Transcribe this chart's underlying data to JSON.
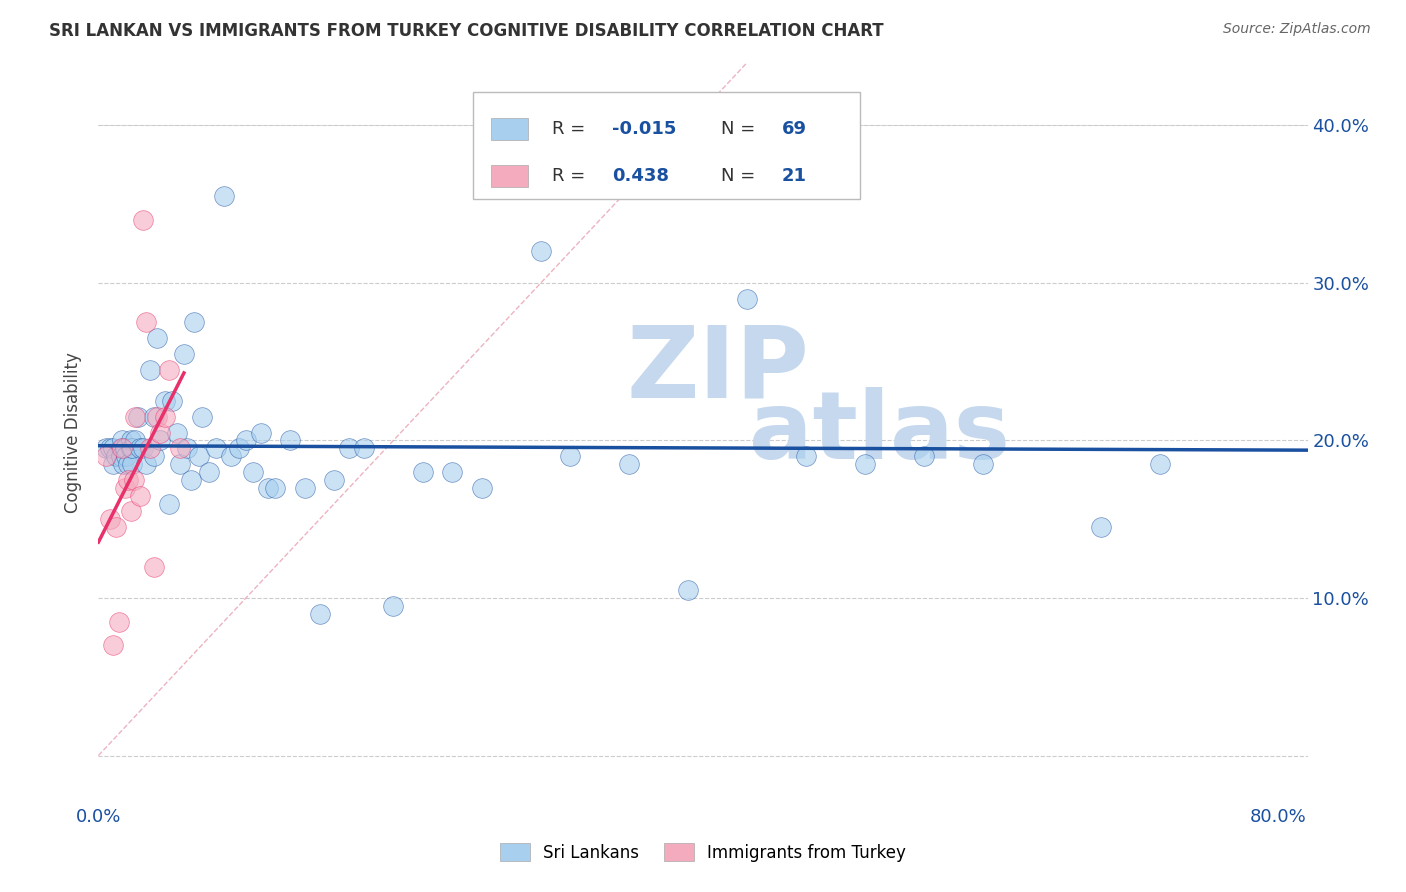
{
  "title": "SRI LANKAN VS IMMIGRANTS FROM TURKEY COGNITIVE DISABILITY CORRELATION CHART",
  "source": "Source: ZipAtlas.com",
  "ylabel": "Cognitive Disability",
  "xlim": [
    0.0,
    0.82
  ],
  "ylim": [
    -0.03,
    0.44
  ],
  "blue_color": "#A8CFEE",
  "pink_color": "#F4ABBE",
  "blue_line_color": "#1A50A0",
  "pink_line_color": "#E8306A",
  "diagonal_color": "#E8A0B0",
  "watermark_zip_color": "#C5D8ED",
  "watermark_atlas_color": "#C5D8ED",
  "sri_lankans_x": [
    0.005,
    0.008,
    0.01,
    0.01,
    0.012,
    0.015,
    0.015,
    0.016,
    0.017,
    0.018,
    0.018,
    0.019,
    0.02,
    0.022,
    0.022,
    0.023,
    0.023,
    0.025,
    0.027,
    0.028,
    0.03,
    0.032,
    0.035,
    0.038,
    0.038,
    0.04,
    0.042,
    0.045,
    0.048,
    0.05,
    0.053,
    0.055,
    0.058,
    0.06,
    0.063,
    0.065,
    0.068,
    0.07,
    0.075,
    0.08,
    0.085,
    0.09,
    0.095,
    0.1,
    0.105,
    0.11,
    0.115,
    0.12,
    0.13,
    0.14,
    0.15,
    0.16,
    0.17,
    0.18,
    0.2,
    0.22,
    0.24,
    0.26,
    0.3,
    0.32,
    0.36,
    0.4,
    0.44,
    0.48,
    0.52,
    0.56,
    0.6,
    0.68,
    0.72
  ],
  "sri_lankans_y": [
    0.195,
    0.195,
    0.195,
    0.185,
    0.19,
    0.195,
    0.19,
    0.2,
    0.185,
    0.195,
    0.195,
    0.19,
    0.185,
    0.195,
    0.2,
    0.185,
    0.195,
    0.2,
    0.215,
    0.195,
    0.195,
    0.185,
    0.245,
    0.215,
    0.19,
    0.265,
    0.2,
    0.225,
    0.16,
    0.225,
    0.205,
    0.185,
    0.255,
    0.195,
    0.175,
    0.275,
    0.19,
    0.215,
    0.18,
    0.195,
    0.355,
    0.19,
    0.195,
    0.2,
    0.18,
    0.205,
    0.17,
    0.17,
    0.2,
    0.17,
    0.09,
    0.175,
    0.195,
    0.195,
    0.095,
    0.18,
    0.18,
    0.17,
    0.32,
    0.19,
    0.185,
    0.105,
    0.29,
    0.19,
    0.185,
    0.19,
    0.185,
    0.145,
    0.185
  ],
  "immigrants_turkey_x": [
    0.005,
    0.008,
    0.01,
    0.012,
    0.014,
    0.016,
    0.018,
    0.02,
    0.022,
    0.024,
    0.025,
    0.028,
    0.03,
    0.032,
    0.035,
    0.038,
    0.04,
    0.042,
    0.045,
    0.048,
    0.055
  ],
  "immigrants_turkey_y": [
    0.19,
    0.15,
    0.07,
    0.145,
    0.085,
    0.195,
    0.17,
    0.175,
    0.155,
    0.175,
    0.215,
    0.165,
    0.34,
    0.275,
    0.195,
    0.12,
    0.215,
    0.205,
    0.215,
    0.245,
    0.195
  ]
}
